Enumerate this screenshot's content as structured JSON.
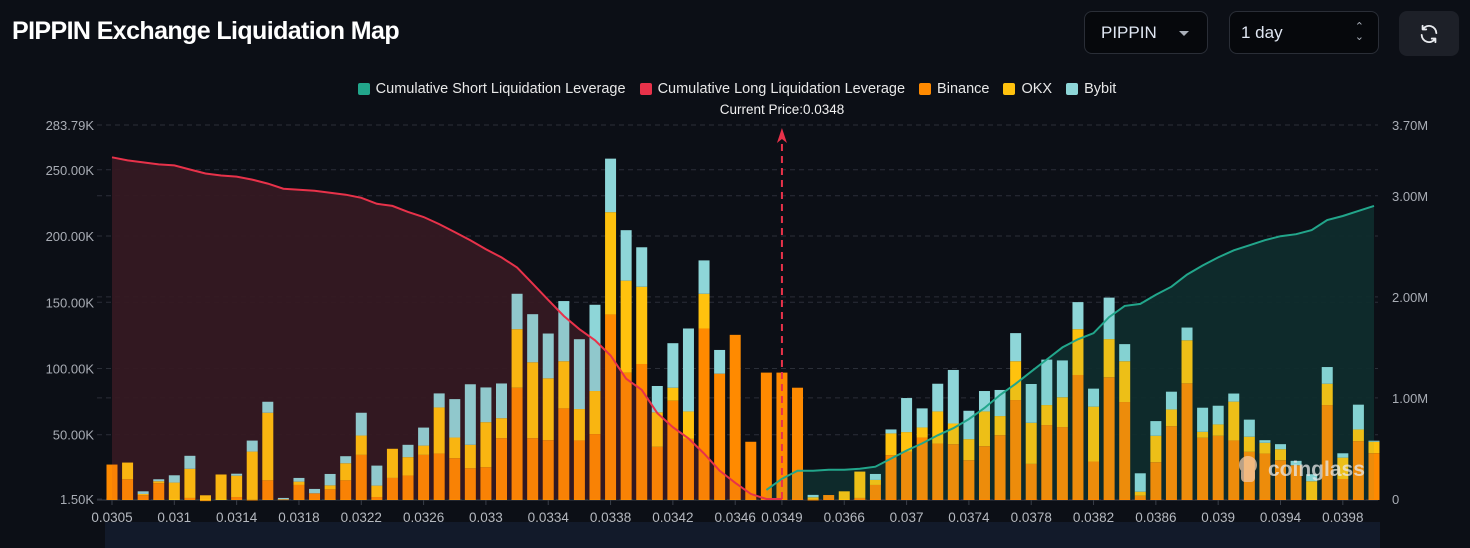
{
  "header": {
    "title": "PIPPIN Exchange Liquidation Map",
    "symbol_select": "PIPPIN",
    "range_select": "1 day",
    "refresh_icon": "refresh-icon"
  },
  "colors": {
    "short_cum": "#22a68b",
    "long_cum": "#e8324a",
    "binance": "#ff8a00",
    "okx": "#ffc20e",
    "bybit": "#8ed6d8",
    "background": "#0c0f16"
  },
  "chart_data": {
    "type": "bar",
    "stacked": true,
    "legend": [
      "Cumulative Short Liquidation Leverage",
      "Cumulative Long Liquidation Leverage",
      "Binance",
      "OKX",
      "Bybit"
    ],
    "legend_position": "top-center",
    "current_price_label": "Current Price:0.0348",
    "current_price_index": 43,
    "watermark": "coinglass",
    "x_tick_labels": [
      {
        "index": 0,
        "label": "0.0305"
      },
      {
        "index": 4,
        "label": "0.031"
      },
      {
        "index": 8,
        "label": "0.0314"
      },
      {
        "index": 12,
        "label": "0.0318"
      },
      {
        "index": 16,
        "label": "0.0322"
      },
      {
        "index": 20,
        "label": "0.0326"
      },
      {
        "index": 24,
        "label": "0.033"
      },
      {
        "index": 28,
        "label": "0.0334"
      },
      {
        "index": 32,
        "label": "0.0338"
      },
      {
        "index": 36,
        "label": "0.0342"
      },
      {
        "index": 40,
        "label": "0.0346"
      },
      {
        "index": 43,
        "label": "0.0349"
      },
      {
        "index": 47,
        "label": "0.0366"
      },
      {
        "index": 51,
        "label": "0.037"
      },
      {
        "index": 55,
        "label": "0.0374"
      },
      {
        "index": 59,
        "label": "0.0378"
      },
      {
        "index": 63,
        "label": "0.0382"
      },
      {
        "index": 67,
        "label": "0.0386"
      },
      {
        "index": 71,
        "label": "0.039"
      },
      {
        "index": 75,
        "label": "0.0394"
      },
      {
        "index": 79,
        "label": "0.0398"
      }
    ],
    "y_left": {
      "unit": "K",
      "range": [
        1.5,
        283.79
      ],
      "ticks": [
        {
          "value": 1.5,
          "label": "1.50K"
        },
        {
          "value": 50,
          "label": "50.00K"
        },
        {
          "value": 100,
          "label": "100.00K"
        },
        {
          "value": 150,
          "label": "150.00K"
        },
        {
          "value": 200,
          "label": "200.00K"
        },
        {
          "value": 250,
          "label": "250.00K"
        },
        {
          "value": 283.79,
          "label": "283.79K"
        }
      ]
    },
    "y_right": {
      "unit": "M",
      "range": [
        0,
        3.7
      ],
      "ticks": [
        {
          "value": 0,
          "label": "0"
        },
        {
          "value": 1,
          "label": "1.00M"
        },
        {
          "value": 2,
          "label": "2.00M"
        },
        {
          "value": 3,
          "label": "3.00M"
        },
        {
          "value": 3.7,
          "label": "3.70M"
        }
      ]
    },
    "grid": true,
    "series": [
      {
        "name": "Binance",
        "key": "binance",
        "values": [
          27.5,
          16.4,
          4.3,
          13.4,
          0,
          2.3,
          0.5,
          0,
          3,
          1,
          15.6,
          1.3,
          12.1,
          5.8,
          8.8,
          15.6,
          34.8,
          3,
          17.4,
          19.2,
          34.8,
          35.8,
          32.3,
          24.7,
          25.5,
          47.4,
          85.5,
          47.4,
          45.9,
          69.9,
          45.7,
          50.5,
          140.8,
          96.9,
          103.4,
          40.9,
          75.7,
          46.9,
          130.2,
          96.1,
          125.4,
          44.7,
          96.9,
          96.9,
          85.5,
          1,
          4.5,
          0,
          2.3,
          12.1,
          34.6,
          37.1,
          47.9,
          43.4,
          42.9,
          30.8,
          41.4,
          49.7,
          76.2,
          28,
          57.3,
          55.8,
          95.1,
          29.8,
          93.4,
          74.7,
          4,
          29.3,
          56.5,
          88.8,
          47.7,
          49.2,
          45.7,
          37.1,
          35.8,
          30.8,
          27,
          0,
          72.4,
          16.6,
          45.2,
          36.1
        ]
      },
      {
        "name": "OKX",
        "key": "okx",
        "values": [
          0,
          12.6,
          1,
          1.5,
          13.9,
          22,
          3.8,
          20,
          16.1,
          36.3,
          51,
          0,
          2.5,
          0,
          3,
          12.9,
          14.6,
          8.6,
          22,
          13.9,
          7,
          34.8,
          15.6,
          17.7,
          34,
          15.1,
          44.2,
          57.3,
          46.7,
          35.6,
          23.7,
          32.5,
          77.2,
          69.4,
          58.3,
          26,
          9.8,
          20.7,
          26.2,
          0,
          0,
          0,
          0,
          0,
          0,
          1.8,
          0,
          7.3,
          19.9,
          3.8,
          16.4,
          14.9,
          7.6,
          24.2,
          15.6,
          15.9,
          26.2,
          14.4,
          29.3,
          31,
          15.1,
          22.5,
          34.6,
          41.4,
          28.8,
          30.8,
          3,
          19.9,
          12.6,
          32.5,
          4.5,
          8.6,
          29.3,
          11.4,
          8.1,
          8.3,
          0,
          14.9,
          16.1,
          16.1,
          8.8,
          8.6
        ]
      },
      {
        "name": "Bybit",
        "key": "bybit",
        "values": [
          0,
          0,
          2,
          1.5,
          5.5,
          9.8,
          0,
          0,
          1.5,
          8.3,
          8.3,
          1,
          2.8,
          3.3,
          8.6,
          5.3,
          17.2,
          15.1,
          0,
          9.3,
          13.6,
          10.6,
          29,
          45.7,
          26.2,
          26.2,
          26.7,
          36.3,
          33.8,
          45.4,
          52.7,
          65.1,
          40.4,
          38.1,
          29.8,
          19.9,
          33.6,
          62.6,
          25.2,
          17.9,
          0,
          0,
          0,
          0,
          0,
          1.8,
          0,
          0,
          0,
          4.5,
          3,
          25.7,
          14.4,
          20.9,
          40.4,
          21.4,
          15.4,
          19.7,
          21.2,
          29.3,
          34.3,
          27.8,
          20.4,
          13.6,
          31.3,
          12.9,
          13.9,
          11.1,
          13.4,
          9.6,
          18.2,
          14.1,
          6.1,
          12.9,
          2,
          3.8,
          3.3,
          5.3,
          12.6,
          3.3,
          18.7,
          0.8
        ]
      }
    ],
    "lines": [
      {
        "name": "Cumulative Long Liquidation Leverage",
        "key": "long_cum",
        "axis": "right",
        "start_index": 0,
        "values": [
          3.38,
          3.35,
          3.33,
          3.31,
          3.3,
          3.26,
          3.22,
          3.2,
          3.19,
          3.16,
          3.12,
          3.07,
          3.06,
          3.05,
          3.03,
          3.01,
          2.98,
          2.92,
          2.9,
          2.84,
          2.79,
          2.72,
          2.64,
          2.56,
          2.47,
          2.39,
          2.29,
          2.13,
          1.97,
          1.81,
          1.68,
          1.57,
          1.42,
          1.19,
          1.08,
          0.85,
          0.71,
          0.6,
          0.45,
          0.28,
          0.16,
          0.05,
          0,
          0
        ]
      },
      {
        "name": "Cumulative Short Liquidation Leverage",
        "key": "short_cum",
        "axis": "right",
        "start_index": 42,
        "values": [
          0.09,
          0.2,
          0.28,
          0.28,
          0.29,
          0.29,
          0.3,
          0.32,
          0.4,
          0.48,
          0.55,
          0.63,
          0.7,
          0.79,
          0.9,
          1.03,
          1.14,
          1.26,
          1.38,
          1.5,
          1.58,
          1.64,
          1.8,
          1.91,
          1.93,
          2.02,
          2.1,
          2.22,
          2.31,
          2.39,
          2.46,
          2.51,
          2.56,
          2.6,
          2.62,
          2.66,
          2.76,
          2.8,
          2.85,
          2.9
        ]
      }
    ]
  }
}
